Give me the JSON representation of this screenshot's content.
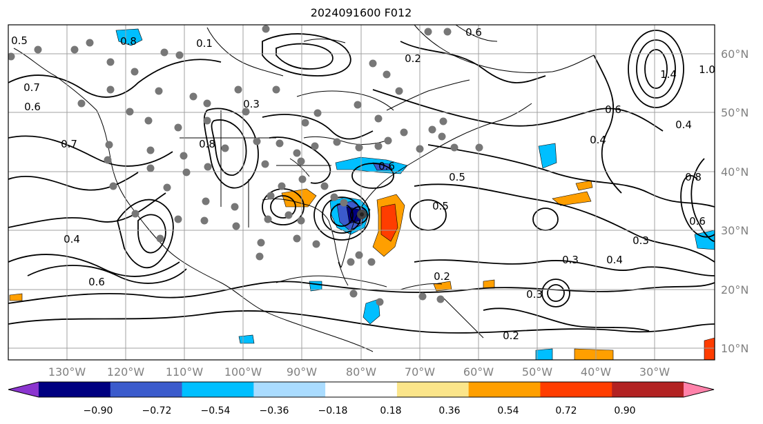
{
  "title": "2024091600 F012",
  "lat_labels": [
    "60°N",
    "50°N",
    "40°N",
    "30°N",
    "20°N",
    "10°N"
  ],
  "lon_labels": [
    "130°W",
    "120°W",
    "110°W",
    "100°W",
    "90°W",
    "80°W",
    "70°W",
    "60°W",
    "50°W",
    "40°W",
    "30°W"
  ],
  "colorbar": {
    "ticks": [
      "−0.90",
      "−0.72",
      "−0.54",
      "−0.36",
      "−0.18",
      "0.18",
      "0.36",
      "0.54",
      "0.72",
      "0.90"
    ],
    "colors": [
      "#8b35cf",
      "#000080",
      "#3b5bcc",
      "#00bfff",
      "#aadcff",
      "#ffffff",
      "#fbe58a",
      "#ff9f00",
      "#ff3d00",
      "#b22222",
      "#ff82aa"
    ]
  },
  "contour_labels": [
    "0.5",
    "0.8",
    "0.6",
    "0.7",
    "1.4",
    "0.4",
    "0.6",
    "0.5",
    "0.3",
    "0.2",
    "0.4",
    "0.6",
    "0.8",
    "0.7",
    "1.0",
    "0.6",
    "0.4",
    "0.3",
    "0.4",
    "0.6",
    "0.1",
    "0.8",
    "0.5",
    "0.2",
    "0.3",
    "0.6",
    "0.2",
    "0.3"
  ]
}
